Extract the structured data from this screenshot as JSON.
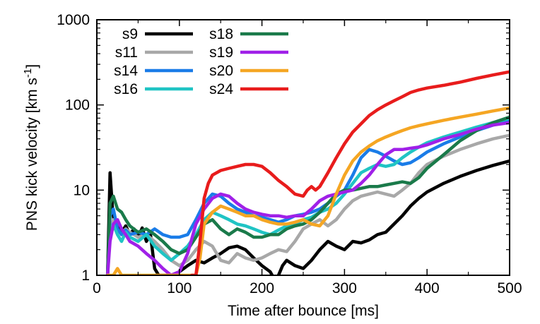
{
  "chart_data": {
    "type": "line",
    "xlabel": "Time after bounce [ms]",
    "ylabel": "PNS kick velocity [km s",
    "ylabel_sup": "-1",
    "ylabel_end": "]",
    "xlim": [
      0,
      500
    ],
    "ylim": [
      1,
      1000
    ],
    "yscale": "log",
    "x_ticks": [
      0,
      100,
      200,
      300,
      400,
      500
    ],
    "x_tick_labels": [
      "0",
      "100",
      "200",
      "300",
      "400",
      "500"
    ],
    "y_ticks": [
      1,
      10,
      100,
      1000
    ],
    "y_tick_labels": [
      "1",
      "10",
      "100",
      "1000"
    ],
    "grid": false,
    "legend_position": "top-left",
    "series": [
      {
        "name": "s9",
        "color": "#000000",
        "x": [
          13,
          16,
          19,
          22,
          26,
          30,
          35,
          40,
          45,
          50,
          55,
          60,
          65,
          70,
          75,
          80,
          90,
          100,
          110,
          120,
          130,
          140,
          150,
          160,
          170,
          180,
          190,
          200,
          210,
          215,
          220,
          225,
          230,
          240,
          250,
          260,
          270,
          280,
          290,
          300,
          310,
          320,
          330,
          340,
          350,
          360,
          370,
          380,
          390,
          400,
          420,
          440,
          460,
          480,
          500
        ],
        "y": [
          1.0,
          16.0,
          6.0,
          3.5,
          4.0,
          3.2,
          3.8,
          3.0,
          3.5,
          2.8,
          3.6,
          2.5,
          3.0,
          1.2,
          1.0,
          1.0,
          1.0,
          1.1,
          1.3,
          1.5,
          1.4,
          1.6,
          1.8,
          2.1,
          2.2,
          2.0,
          1.6,
          1.3,
          1.1,
          0.9,
          1.0,
          1.3,
          1.5,
          1.3,
          1.2,
          1.5,
          2.0,
          2.5,
          2.2,
          2.0,
          2.5,
          2.4,
          2.6,
          3.0,
          3.2,
          4.0,
          5.0,
          6.5,
          8.0,
          9.5,
          12.0,
          14.5,
          17.0,
          19.5,
          22.0
        ]
      },
      {
        "name": "s11",
        "color": "#a8a8a8",
        "x": [
          13,
          16,
          20,
          25,
          30,
          35,
          40,
          50,
          60,
          70,
          80,
          90,
          100,
          110,
          120,
          130,
          140,
          150,
          160,
          170,
          180,
          190,
          200,
          210,
          220,
          230,
          240,
          250,
          260,
          270,
          280,
          290,
          300,
          310,
          320,
          330,
          340,
          350,
          360,
          370,
          380,
          390,
          400,
          420,
          440,
          460,
          480,
          500
        ],
        "y": [
          1.0,
          3.0,
          4.5,
          3.5,
          3.0,
          3.5,
          3.2,
          2.8,
          3.0,
          2.5,
          2.0,
          1.5,
          1.3,
          1.5,
          2.0,
          2.5,
          2.2,
          1.5,
          1.4,
          1.8,
          1.6,
          1.5,
          1.6,
          1.8,
          2.0,
          1.9,
          2.5,
          3.5,
          4.0,
          4.5,
          3.8,
          4.5,
          6.0,
          7.5,
          8.5,
          9.0,
          9.5,
          9.0,
          8.5,
          10.0,
          12.0,
          16.0,
          20.0,
          25.0,
          30.0,
          35.0,
          40.0,
          44.0
        ]
      },
      {
        "name": "s14",
        "color": "#1a7ce8",
        "x": [
          13,
          16,
          20,
          25,
          30,
          35,
          40,
          50,
          60,
          70,
          80,
          90,
          100,
          110,
          120,
          130,
          140,
          150,
          160,
          170,
          180,
          190,
          200,
          210,
          220,
          230,
          240,
          250,
          260,
          270,
          280,
          290,
          300,
          310,
          320,
          330,
          340,
          350,
          360,
          370,
          380,
          390,
          400,
          420,
          440,
          460,
          480,
          500
        ],
        "y": [
          1.0,
          5.0,
          6.0,
          3.5,
          3.0,
          3.4,
          3.0,
          3.2,
          3.0,
          3.5,
          3.0,
          2.8,
          2.8,
          3.0,
          4.5,
          7.0,
          9.0,
          8.5,
          7.0,
          6.0,
          5.5,
          5.0,
          4.8,
          4.5,
          4.2,
          4.5,
          5.0,
          5.2,
          5.5,
          6.0,
          7.0,
          8.5,
          10.0,
          15.0,
          24.0,
          30.0,
          28.0,
          25.0,
          22.0,
          20.0,
          21.0,
          24.0,
          28.0,
          35.0,
          42.0,
          50.0,
          58.0,
          65.0
        ]
      },
      {
        "name": "s16",
        "color": "#20c4c4",
        "x": [
          13,
          16,
          20,
          25,
          30,
          35,
          40,
          50,
          60,
          70,
          80,
          90,
          100,
          110,
          120,
          130,
          140,
          150,
          160,
          170,
          180,
          190,
          200,
          210,
          220,
          230,
          240,
          250,
          260,
          270,
          280,
          290,
          300,
          310,
          320,
          330,
          340,
          350,
          360,
          370,
          380,
          390,
          400,
          420,
          440,
          460,
          480,
          500
        ],
        "y": [
          1.0,
          3.5,
          4.0,
          3.0,
          2.5,
          3.2,
          2.8,
          2.5,
          3.0,
          2.2,
          1.8,
          1.5,
          1.8,
          2.2,
          3.0,
          4.5,
          5.5,
          5.0,
          4.5,
          4.0,
          3.8,
          3.5,
          3.2,
          3.0,
          3.4,
          3.8,
          4.0,
          4.5,
          4.8,
          5.5,
          6.0,
          7.0,
          9.0,
          12.0,
          16.0,
          18.0,
          20.0,
          19.0,
          20.0,
          24.0,
          28.0,
          32.0,
          36.0,
          42.0,
          48.0,
          55.0,
          62.0,
          70.0
        ]
      },
      {
        "name": "s18",
        "color": "#1a7a4a",
        "x": [
          13,
          16,
          20,
          25,
          30,
          35,
          40,
          50,
          60,
          70,
          80,
          90,
          100,
          110,
          120,
          130,
          140,
          150,
          160,
          170,
          180,
          190,
          200,
          210,
          220,
          230,
          240,
          250,
          260,
          270,
          280,
          290,
          300,
          310,
          320,
          330,
          340,
          350,
          360,
          370,
          380,
          390,
          400,
          420,
          440,
          460,
          480,
          500
        ],
        "y": [
          1.0,
          7.0,
          8.5,
          6.0,
          5.5,
          4.5,
          3.8,
          3.2,
          3.5,
          3.0,
          2.5,
          2.0,
          1.8,
          2.0,
          2.8,
          4.0,
          4.5,
          3.5,
          3.0,
          3.5,
          3.2,
          2.8,
          2.8,
          3.0,
          3.0,
          3.5,
          3.8,
          4.0,
          4.5,
          5.5,
          7.0,
          9.0,
          10.0,
          10.0,
          10.5,
          11.0,
          11.0,
          11.5,
          12.0,
          12.5,
          12.0,
          14.0,
          18.0,
          26.0,
          38.0,
          50.0,
          62.0,
          72.0
        ]
      },
      {
        "name": "s19",
        "color": "#a020e8",
        "x": [
          13,
          16,
          20,
          25,
          30,
          35,
          40,
          50,
          60,
          70,
          80,
          90,
          100,
          110,
          120,
          130,
          140,
          150,
          160,
          170,
          180,
          190,
          200,
          210,
          220,
          230,
          240,
          250,
          260,
          270,
          280,
          290,
          300,
          310,
          320,
          330,
          340,
          350,
          360,
          370,
          380,
          390,
          400,
          420,
          440,
          460,
          480,
          500
        ],
        "y": [
          1.0,
          2.5,
          4.0,
          4.5,
          3.5,
          3.0,
          2.5,
          2.2,
          1.8,
          1.5,
          1.2,
          1.0,
          1.1,
          1.8,
          4.0,
          6.0,
          8.0,
          9.0,
          8.5,
          7.0,
          6.0,
          5.5,
          5.2,
          5.0,
          5.0,
          4.8,
          5.0,
          5.0,
          6.0,
          7.5,
          8.5,
          9.0,
          9.5,
          10.0,
          12.0,
          15.0,
          20.0,
          26.0,
          30.0,
          30.0,
          31.0,
          32.0,
          34.0,
          40.0,
          45.0,
          52.0,
          58.0,
          62.0
        ]
      },
      {
        "name": "s20",
        "color": "#f5a623",
        "x": [
          13,
          15,
          18,
          20,
          25,
          30,
          120,
          125,
          130,
          140,
          150,
          160,
          170,
          180,
          190,
          200,
          210,
          220,
          230,
          240,
          250,
          260,
          270,
          280,
          290,
          300,
          310,
          320,
          330,
          340,
          350,
          360,
          370,
          380,
          390,
          400,
          420,
          440,
          460,
          480,
          500
        ],
        "y": [
          1.0,
          1.0,
          1.0,
          1.0,
          1.2,
          1.0,
          1.0,
          1.6,
          4.0,
          5.5,
          6.5,
          6.0,
          5.5,
          5.0,
          5.0,
          4.5,
          4.2,
          4.0,
          4.0,
          4.2,
          4.5,
          4.0,
          3.8,
          5.0,
          9.0,
          15.0,
          22.0,
          28.0,
          33.0,
          38.0,
          42.0,
          46.0,
          50.0,
          54.0,
          57.0,
          60.0,
          66.0,
          72.0,
          78.0,
          85.0,
          92.0
        ]
      },
      {
        "name": "s24",
        "color": "#e81c1c",
        "x": [
          115,
          120,
          125,
          130,
          135,
          140,
          150,
          160,
          170,
          180,
          190,
          200,
          210,
          220,
          230,
          240,
          250,
          255,
          260,
          265,
          270,
          280,
          290,
          300,
          310,
          320,
          330,
          340,
          350,
          360,
          370,
          380,
          390,
          400,
          420,
          440,
          460,
          480,
          500
        ],
        "y": [
          1.0,
          1.0,
          2.5,
          8.0,
          12.0,
          15.0,
          17.0,
          18.0,
          19.0,
          20.0,
          20.0,
          19.0,
          16.0,
          13.0,
          11.0,
          9.0,
          8.5,
          10.0,
          11.0,
          10.0,
          11.0,
          16.0,
          24.0,
          35.0,
          48.0,
          60.0,
          75.0,
          88.0,
          100.0,
          112.0,
          125.0,
          140.0,
          150.0,
          158.0,
          170.0,
          185.0,
          205.0,
          225.0,
          245.0
        ]
      }
    ]
  }
}
